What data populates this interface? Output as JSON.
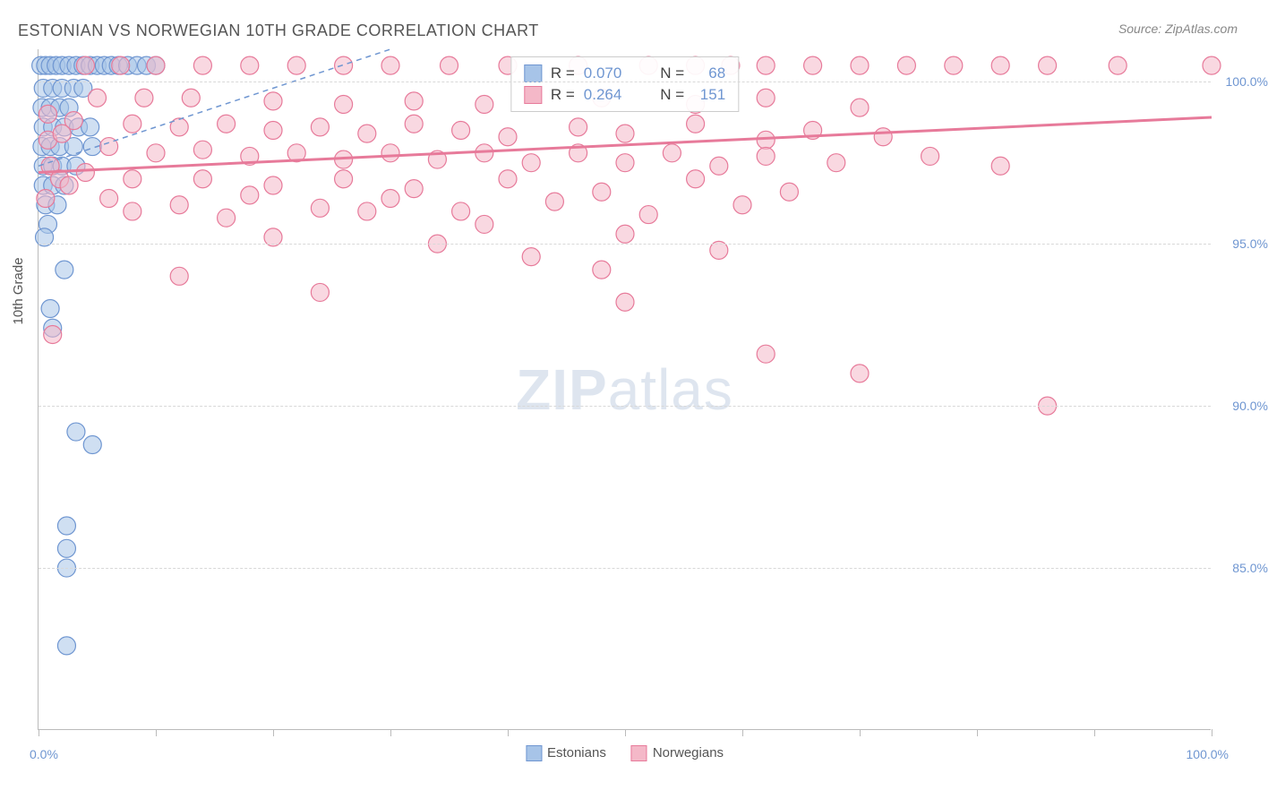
{
  "title": "ESTONIAN VS NORWEGIAN 10TH GRADE CORRELATION CHART",
  "source": "Source: ZipAtlas.com",
  "y_axis_title": "10th Grade",
  "watermark_bold": "ZIP",
  "watermark_light": "atlas",
  "chart": {
    "type": "scatter",
    "xlim": [
      0,
      100
    ],
    "ylim": [
      80,
      101
    ],
    "x_ticks": [
      0,
      10,
      20,
      30,
      40,
      50,
      60,
      70,
      80,
      90,
      100
    ],
    "x_tick_labels_shown": {
      "0": "0.0%",
      "100": "100.0%"
    },
    "y_gridlines": [
      85,
      90,
      95,
      100
    ],
    "y_tick_labels": {
      "85": "85.0%",
      "90": "90.0%",
      "95": "95.0%",
      "100": "100.0%"
    },
    "background_color": "#ffffff",
    "grid_color": "#d8d8d8",
    "axis_color": "#bbbbbb",
    "tick_label_color": "#6f96d1",
    "marker_radius": 10,
    "marker_opacity": 0.55,
    "series": [
      {
        "name": "Estonians",
        "fill": "#a7c4e8",
        "stroke": "#6f96d1",
        "regression": {
          "x1": 0,
          "y1": 97.4,
          "x2": 30,
          "y2": 101,
          "dash": "6,5",
          "width": 1.5
        },
        "stats": {
          "R": "0.070",
          "N": "68"
        },
        "points": [
          [
            0.2,
            100.5
          ],
          [
            0.6,
            100.5
          ],
          [
            1.0,
            100.5
          ],
          [
            1.5,
            100.5
          ],
          [
            2.0,
            100.5
          ],
          [
            2.6,
            100.5
          ],
          [
            3.2,
            100.5
          ],
          [
            3.8,
            100.5
          ],
          [
            4.4,
            100.5
          ],
          [
            5.0,
            100.5
          ],
          [
            5.6,
            100.5
          ],
          [
            6.2,
            100.5
          ],
          [
            6.8,
            100.5
          ],
          [
            7.6,
            100.5
          ],
          [
            8.4,
            100.5
          ],
          [
            9.2,
            100.5
          ],
          [
            10.0,
            100.5
          ],
          [
            0.4,
            99.8
          ],
          [
            1.2,
            99.8
          ],
          [
            2.0,
            99.8
          ],
          [
            3.0,
            99.8
          ],
          [
            3.8,
            99.8
          ],
          [
            0.3,
            99.2
          ],
          [
            1.0,
            99.2
          ],
          [
            1.8,
            99.2
          ],
          [
            2.6,
            99.2
          ],
          [
            0.4,
            98.6
          ],
          [
            1.2,
            98.6
          ],
          [
            2.2,
            98.6
          ],
          [
            3.4,
            98.6
          ],
          [
            4.4,
            98.6
          ],
          [
            0.3,
            98.0
          ],
          [
            1.0,
            98.0
          ],
          [
            1.8,
            98.0
          ],
          [
            3.0,
            98.0
          ],
          [
            4.6,
            98.0
          ],
          [
            0.4,
            97.4
          ],
          [
            1.2,
            97.4
          ],
          [
            2.0,
            97.4
          ],
          [
            3.2,
            97.4
          ],
          [
            0.4,
            96.8
          ],
          [
            1.2,
            96.8
          ],
          [
            2.2,
            96.8
          ],
          [
            0.6,
            96.2
          ],
          [
            1.6,
            96.2
          ],
          [
            0.8,
            95.6
          ],
          [
            0.5,
            95.2
          ],
          [
            2.2,
            94.2
          ],
          [
            1.0,
            93.0
          ],
          [
            1.2,
            92.4
          ],
          [
            3.2,
            89.2
          ],
          [
            4.6,
            88.8
          ],
          [
            2.4,
            86.3
          ],
          [
            2.4,
            85.6
          ],
          [
            2.4,
            85.0
          ],
          [
            2.4,
            82.6
          ]
        ]
      },
      {
        "name": "Norwegians",
        "fill": "#f4b8c8",
        "stroke": "#e77a9a",
        "regression": {
          "x1": 0,
          "y1": 97.2,
          "x2": 100,
          "y2": 98.9,
          "dash": "none",
          "width": 3
        },
        "stats": {
          "R": "0.264",
          "N": "151"
        },
        "points": [
          [
            4,
            100.5
          ],
          [
            7,
            100.5
          ],
          [
            10,
            100.5
          ],
          [
            14,
            100.5
          ],
          [
            18,
            100.5
          ],
          [
            22,
            100.5
          ],
          [
            26,
            100.5
          ],
          [
            30,
            100.5
          ],
          [
            35,
            100.5
          ],
          [
            40,
            100.5
          ],
          [
            46,
            100.5
          ],
          [
            52,
            100.5
          ],
          [
            56,
            100.5
          ],
          [
            59,
            100.5
          ],
          [
            62,
            100.5
          ],
          [
            66,
            100.5
          ],
          [
            70,
            100.5
          ],
          [
            74,
            100.5
          ],
          [
            78,
            100.5
          ],
          [
            82,
            100.5
          ],
          [
            86,
            100.5
          ],
          [
            92,
            100.5
          ],
          [
            100,
            100.5
          ],
          [
            5,
            99.5
          ],
          [
            9,
            99.5
          ],
          [
            13,
            99.5
          ],
          [
            20,
            99.4
          ],
          [
            26,
            99.3
          ],
          [
            32,
            99.4
          ],
          [
            38,
            99.3
          ],
          [
            48,
            99.5
          ],
          [
            56,
            99.3
          ],
          [
            62,
            99.5
          ],
          [
            70,
            99.2
          ],
          [
            3,
            98.8
          ],
          [
            8,
            98.7
          ],
          [
            12,
            98.6
          ],
          [
            16,
            98.7
          ],
          [
            20,
            98.5
          ],
          [
            24,
            98.6
          ],
          [
            28,
            98.4
          ],
          [
            32,
            98.7
          ],
          [
            36,
            98.5
          ],
          [
            40,
            98.3
          ],
          [
            46,
            98.6
          ],
          [
            50,
            98.4
          ],
          [
            56,
            98.7
          ],
          [
            62,
            98.2
          ],
          [
            66,
            98.5
          ],
          [
            72,
            98.3
          ],
          [
            6,
            98.0
          ],
          [
            10,
            97.8
          ],
          [
            14,
            97.9
          ],
          [
            18,
            97.7
          ],
          [
            22,
            97.8
          ],
          [
            26,
            97.6
          ],
          [
            30,
            97.8
          ],
          [
            34,
            97.6
          ],
          [
            38,
            97.8
          ],
          [
            42,
            97.5
          ],
          [
            46,
            97.8
          ],
          [
            50,
            97.5
          ],
          [
            54,
            97.8
          ],
          [
            58,
            97.4
          ],
          [
            62,
            97.7
          ],
          [
            68,
            97.5
          ],
          [
            76,
            97.7
          ],
          [
            82,
            97.4
          ],
          [
            4,
            97.2
          ],
          [
            8,
            97.0
          ],
          [
            14,
            97.0
          ],
          [
            20,
            96.8
          ],
          [
            26,
            97.0
          ],
          [
            32,
            96.7
          ],
          [
            40,
            97.0
          ],
          [
            48,
            96.6
          ],
          [
            56,
            97.0
          ],
          [
            64,
            96.6
          ],
          [
            6,
            96.4
          ],
          [
            12,
            96.2
          ],
          [
            18,
            96.5
          ],
          [
            24,
            96.1
          ],
          [
            30,
            96.4
          ],
          [
            36,
            96.0
          ],
          [
            44,
            96.3
          ],
          [
            52,
            95.9
          ],
          [
            60,
            96.2
          ],
          [
            8,
            96.0
          ],
          [
            16,
            95.8
          ],
          [
            28,
            96.0
          ],
          [
            38,
            95.6
          ],
          [
            20,
            95.2
          ],
          [
            34,
            95.0
          ],
          [
            50,
            95.3
          ],
          [
            58,
            94.8
          ],
          [
            42,
            94.6
          ],
          [
            48,
            94.2
          ],
          [
            12,
            94.0
          ],
          [
            24,
            93.5
          ],
          [
            50,
            93.2
          ],
          [
            62,
            91.6
          ],
          [
            70,
            91.0
          ],
          [
            86,
            90.0
          ],
          [
            1.2,
            92.2
          ],
          [
            1.0,
            97.4
          ],
          [
            1.8,
            97.0
          ],
          [
            2.6,
            96.8
          ],
          [
            0.8,
            98.2
          ],
          [
            2.0,
            98.4
          ],
          [
            0.6,
            96.4
          ],
          [
            0.8,
            99.0
          ]
        ]
      }
    ]
  },
  "legend_bottom": [
    {
      "label": "Estonians",
      "fill": "#a7c4e8",
      "stroke": "#6f96d1"
    },
    {
      "label": "Norwegians",
      "fill": "#f4b8c8",
      "stroke": "#e77a9a"
    }
  ]
}
